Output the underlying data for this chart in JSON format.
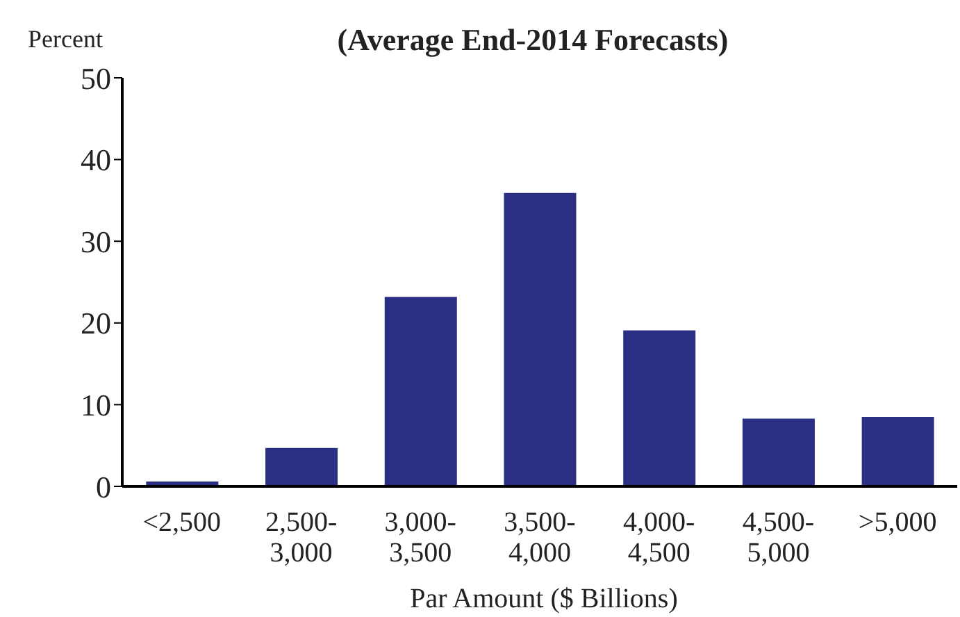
{
  "chart_data": {
    "type": "bar",
    "title": "(Average End-2014 Forecasts)",
    "ylabel": "Percent",
    "xlabel": "Par Amount ($ Billions)",
    "categories": [
      "<2,500",
      "2,500-\n3,000",
      "3,000-\n3,500",
      "3,500-\n4,000",
      "4,000-\n4,500",
      "4,500-\n5,000",
      ">5,000"
    ],
    "values": [
      0.6,
      4.7,
      23.2,
      35.9,
      19.1,
      8.3,
      8.5
    ],
    "color": "#2b2f84",
    "ylim": [
      0,
      50
    ],
    "yticks": [
      0,
      10,
      20,
      30,
      40,
      50
    ],
    "grid": false,
    "legend": false
  }
}
